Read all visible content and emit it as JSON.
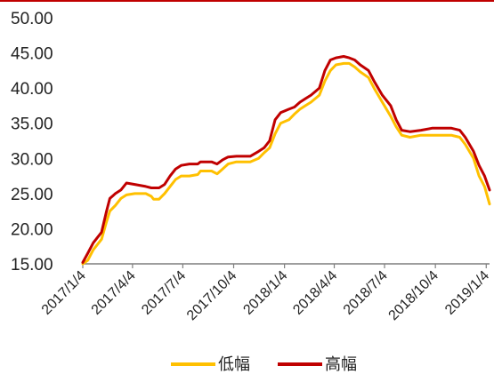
{
  "chart_data": {
    "type": "line",
    "title": "",
    "xlabel": "",
    "ylabel": "",
    "ylim": [
      15,
      50
    ],
    "y_ticks": [
      "15.00",
      "20.00",
      "25.00",
      "30.00",
      "35.00",
      "40.00",
      "45.00",
      "50.00"
    ],
    "x_range": [
      "2017-01-04",
      "2019-01-10"
    ],
    "x_ticks": [
      {
        "date": "2017-01-04",
        "label": "2017/1/4"
      },
      {
        "date": "2017-04-04",
        "label": "2017/4/4"
      },
      {
        "date": "2017-07-04",
        "label": "2017/7/4"
      },
      {
        "date": "2017-10-04",
        "label": "2017/10/4"
      },
      {
        "date": "2018-01-04",
        "label": "2018/1/4"
      },
      {
        "date": "2018-04-04",
        "label": "2018/4/4"
      },
      {
        "date": "2018-07-04",
        "label": "2018/7/4"
      },
      {
        "date": "2018-10-04",
        "label": "2018/10/4"
      },
      {
        "date": "2019-01-04",
        "label": "2019/1/4"
      }
    ],
    "grid": false,
    "legend_position": "bottom",
    "series": [
      {
        "name": "低幅",
        "color": "#ffc000",
        "points": [
          [
            "2017-01-04",
            15.0
          ],
          [
            "2017-01-13",
            15.5
          ],
          [
            "2017-01-23",
            17.0
          ],
          [
            "2017-02-07",
            18.5
          ],
          [
            "2017-02-16",
            21.0
          ],
          [
            "2017-02-22",
            22.5
          ],
          [
            "2017-03-04",
            23.3
          ],
          [
            "2017-03-14",
            24.3
          ],
          [
            "2017-03-24",
            24.8
          ],
          [
            "2017-04-08",
            25.0
          ],
          [
            "2017-04-28",
            25.0
          ],
          [
            "2017-05-08",
            24.6
          ],
          [
            "2017-05-12",
            24.2
          ],
          [
            "2017-05-22",
            24.2
          ],
          [
            "2017-06-01",
            25.0
          ],
          [
            "2017-06-11",
            26.0
          ],
          [
            "2017-06-21",
            27.0
          ],
          [
            "2017-07-01",
            27.5
          ],
          [
            "2017-07-16",
            27.5
          ],
          [
            "2017-07-31",
            27.7
          ],
          [
            "2017-08-05",
            28.2
          ],
          [
            "2017-08-25",
            28.2
          ],
          [
            "2017-09-04",
            27.8
          ],
          [
            "2017-09-14",
            28.5
          ],
          [
            "2017-09-24",
            29.2
          ],
          [
            "2017-10-09",
            29.5
          ],
          [
            "2017-11-03",
            29.5
          ],
          [
            "2017-11-18",
            30.0
          ],
          [
            "2017-11-28",
            30.8
          ],
          [
            "2017-12-08",
            31.5
          ],
          [
            "2017-12-18",
            33.5
          ],
          [
            "2017-12-28",
            35.0
          ],
          [
            "2018-01-12",
            35.5
          ],
          [
            "2018-01-22",
            36.3
          ],
          [
            "2018-02-01",
            37.0
          ],
          [
            "2018-02-11",
            37.5
          ],
          [
            "2018-02-21",
            38.0
          ],
          [
            "2018-03-08",
            39.0
          ],
          [
            "2018-03-18",
            41.0
          ],
          [
            "2018-03-28",
            42.5
          ],
          [
            "2018-04-07",
            43.3
          ],
          [
            "2018-04-21",
            43.5
          ],
          [
            "2018-05-01",
            43.5
          ],
          [
            "2018-05-11",
            43.0
          ],
          [
            "2018-05-21",
            42.3
          ],
          [
            "2018-06-05",
            41.5
          ],
          [
            "2018-06-15",
            40.0
          ],
          [
            "2018-06-30",
            38.0
          ],
          [
            "2018-07-15",
            36.0
          ],
          [
            "2018-07-25",
            34.5
          ],
          [
            "2018-08-04",
            33.3
          ],
          [
            "2018-08-19",
            33.0
          ],
          [
            "2018-09-08",
            33.3
          ],
          [
            "2018-10-08",
            33.3
          ],
          [
            "2018-11-02",
            33.3
          ],
          [
            "2018-11-17",
            33.0
          ],
          [
            "2018-11-27",
            32.0
          ],
          [
            "2018-12-12",
            30.0
          ],
          [
            "2018-12-22",
            27.5
          ],
          [
            "2019-01-01",
            26.0
          ],
          [
            "2019-01-10",
            23.5
          ]
        ]
      },
      {
        "name": "高幅",
        "color": "#c00000",
        "points": [
          [
            "2017-01-04",
            15.2
          ],
          [
            "2017-01-13",
            16.5
          ],
          [
            "2017-01-23",
            18.0
          ],
          [
            "2017-02-07",
            19.5
          ],
          [
            "2017-02-16",
            22.5
          ],
          [
            "2017-02-22",
            24.3
          ],
          [
            "2017-03-04",
            25.0
          ],
          [
            "2017-03-14",
            25.5
          ],
          [
            "2017-03-24",
            26.5
          ],
          [
            "2017-04-08",
            26.3
          ],
          [
            "2017-04-28",
            26.0
          ],
          [
            "2017-05-08",
            25.8
          ],
          [
            "2017-05-22",
            25.8
          ],
          [
            "2017-06-01",
            26.3
          ],
          [
            "2017-06-11",
            27.5
          ],
          [
            "2017-06-21",
            28.5
          ],
          [
            "2017-07-01",
            29.0
          ],
          [
            "2017-07-16",
            29.2
          ],
          [
            "2017-07-31",
            29.2
          ],
          [
            "2017-08-05",
            29.5
          ],
          [
            "2017-08-25",
            29.5
          ],
          [
            "2017-09-04",
            29.2
          ],
          [
            "2017-09-14",
            29.8
          ],
          [
            "2017-09-24",
            30.2
          ],
          [
            "2017-10-09",
            30.3
          ],
          [
            "2017-11-03",
            30.3
          ],
          [
            "2017-11-18",
            31.0
          ],
          [
            "2017-11-28",
            31.5
          ],
          [
            "2017-12-08",
            32.5
          ],
          [
            "2017-12-18",
            35.5
          ],
          [
            "2017-12-28",
            36.5
          ],
          [
            "2018-01-12",
            37.0
          ],
          [
            "2018-01-22",
            37.3
          ],
          [
            "2018-02-01",
            38.0
          ],
          [
            "2018-02-11",
            38.5
          ],
          [
            "2018-02-21",
            39.0
          ],
          [
            "2018-03-08",
            40.0
          ],
          [
            "2018-03-18",
            42.5
          ],
          [
            "2018-03-28",
            44.0
          ],
          [
            "2018-04-07",
            44.3
          ],
          [
            "2018-04-21",
            44.5
          ],
          [
            "2018-05-01",
            44.3
          ],
          [
            "2018-05-11",
            44.0
          ],
          [
            "2018-05-21",
            43.3
          ],
          [
            "2018-06-05",
            42.5
          ],
          [
            "2018-06-15",
            41.0
          ],
          [
            "2018-06-30",
            39.0
          ],
          [
            "2018-07-15",
            37.5
          ],
          [
            "2018-07-25",
            35.5
          ],
          [
            "2018-08-04",
            34.0
          ],
          [
            "2018-08-19",
            33.8
          ],
          [
            "2018-09-08",
            34.0
          ],
          [
            "2018-09-28",
            34.3
          ],
          [
            "2018-10-08",
            34.3
          ],
          [
            "2018-11-02",
            34.3
          ],
          [
            "2018-11-17",
            34.0
          ],
          [
            "2018-11-27",
            33.0
          ],
          [
            "2018-12-12",
            31.0
          ],
          [
            "2018-12-22",
            29.0
          ],
          [
            "2019-01-01",
            27.5
          ],
          [
            "2019-01-10",
            25.5
          ]
        ]
      }
    ]
  }
}
